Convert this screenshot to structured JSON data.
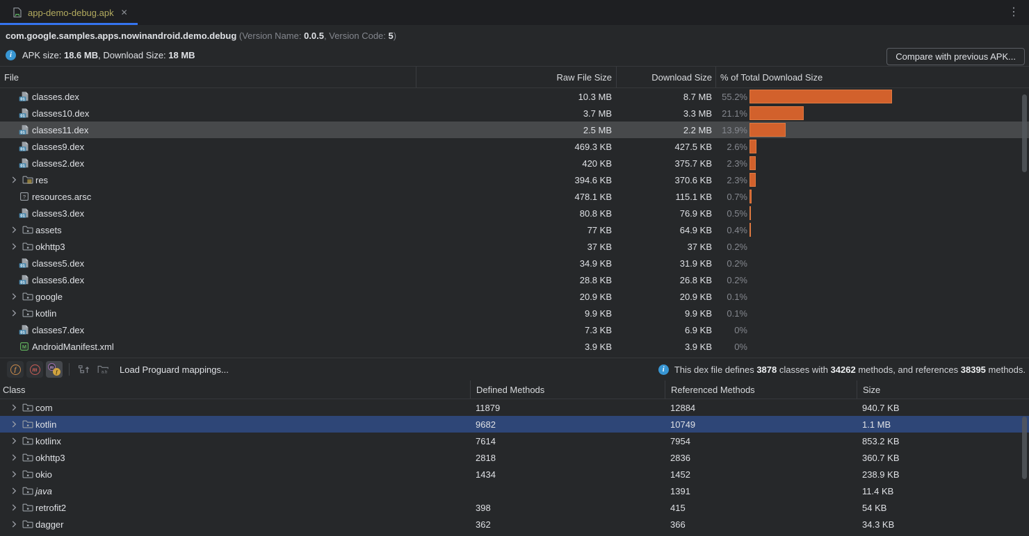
{
  "tab": {
    "title": "app-demo-debug.apk",
    "close_glyph": "✕",
    "menu_glyph": "⋮"
  },
  "header": {
    "package_name": "com.google.samples.apps.nowinandroid.demo.debug",
    "version_open": " (Version Name: ",
    "version_name": "0.0.5",
    "version_code_label": ", Version Code: ",
    "version_code": "5",
    "version_close": ")",
    "apk_size_label": "APK size: ",
    "apk_size": "18.6 MB",
    "download_size_label": ", Download Size: ",
    "download_size": "18 MB",
    "compare_button": "Compare with previous APK..."
  },
  "file_table": {
    "columns": [
      "File",
      "Raw File Size",
      "Download Size",
      "% of Total Download Size"
    ],
    "rows": [
      {
        "name": "classes.dex",
        "type": "dex",
        "expandable": false,
        "raw": "10.3 MB",
        "download": "8.7 MB",
        "pct": "55.2%",
        "pct_value": 55.2,
        "selected": false
      },
      {
        "name": "classes10.dex",
        "type": "dex",
        "expandable": false,
        "raw": "3.7 MB",
        "download": "3.3 MB",
        "pct": "21.1%",
        "pct_value": 21.1,
        "selected": false
      },
      {
        "name": "classes11.dex",
        "type": "dex",
        "expandable": false,
        "raw": "2.5 MB",
        "download": "2.2 MB",
        "pct": "13.9%",
        "pct_value": 13.9,
        "selected": true
      },
      {
        "name": "classes9.dex",
        "type": "dex",
        "expandable": false,
        "raw": "469.3 KB",
        "download": "427.5 KB",
        "pct": "2.6%",
        "pct_value": 2.6,
        "selected": false
      },
      {
        "name": "classes2.dex",
        "type": "dex",
        "expandable": false,
        "raw": "420 KB",
        "download": "375.7 KB",
        "pct": "2.3%",
        "pct_value": 2.3,
        "selected": false
      },
      {
        "name": "res",
        "type": "res",
        "expandable": true,
        "raw": "394.6 KB",
        "download": "370.6 KB",
        "pct": "2.3%",
        "pct_value": 2.3,
        "selected": false
      },
      {
        "name": "resources.arsc",
        "type": "arsc",
        "expandable": false,
        "raw": "478.1 KB",
        "download": "115.1 KB",
        "pct": "0.7%",
        "pct_value": 0.7,
        "selected": false
      },
      {
        "name": "classes3.dex",
        "type": "dex",
        "expandable": false,
        "raw": "80.8 KB",
        "download": "76.9 KB",
        "pct": "0.5%",
        "pct_value": 0.5,
        "selected": false
      },
      {
        "name": "assets",
        "type": "folder",
        "expandable": true,
        "raw": "77 KB",
        "download": "64.9 KB",
        "pct": "0.4%",
        "pct_value": 0.4,
        "selected": false
      },
      {
        "name": "okhttp3",
        "type": "folder",
        "expandable": true,
        "raw": "37 KB",
        "download": "37 KB",
        "pct": "0.2%",
        "pct_value": 0.2,
        "selected": false
      },
      {
        "name": "classes5.dex",
        "type": "dex",
        "expandable": false,
        "raw": "34.9 KB",
        "download": "31.9 KB",
        "pct": "0.2%",
        "pct_value": 0.2,
        "selected": false
      },
      {
        "name": "classes6.dex",
        "type": "dex",
        "expandable": false,
        "raw": "28.8 KB",
        "download": "26.8 KB",
        "pct": "0.2%",
        "pct_value": 0.2,
        "selected": false
      },
      {
        "name": "google",
        "type": "folder",
        "expandable": true,
        "raw": "20.9 KB",
        "download": "20.9 KB",
        "pct": "0.1%",
        "pct_value": 0.1,
        "selected": false
      },
      {
        "name": "kotlin",
        "type": "folder",
        "expandable": true,
        "raw": "9.9 KB",
        "download": "9.9 KB",
        "pct": "0.1%",
        "pct_value": 0.1,
        "selected": false
      },
      {
        "name": "classes7.dex",
        "type": "dex",
        "expandable": false,
        "raw": "7.3 KB",
        "download": "6.9 KB",
        "pct": "0%",
        "pct_value": 0,
        "selected": false
      },
      {
        "name": "AndroidManifest.xml",
        "type": "manifest",
        "expandable": false,
        "raw": "3.9 KB",
        "download": "3.9 KB",
        "pct": "0%",
        "pct_value": 0,
        "selected": false
      }
    ]
  },
  "toolbar": {
    "field_letter": "f",
    "method_letter": "m",
    "ref_method_letter": "m",
    "ref_field_letter": "f",
    "load_proguard_label": "Load Proguard mappings...",
    "info_prefix": "This dex file defines ",
    "classes_count": "3878",
    "info_mid1": " classes with ",
    "defined_methods_count": "34262",
    "info_mid2": " methods, and references ",
    "referenced_methods_count": "38395",
    "info_suffix": " methods."
  },
  "class_table": {
    "columns": [
      "Class",
      "Defined Methods",
      "Referenced Methods",
      "Size"
    ],
    "rows": [
      {
        "name": "com",
        "defined": "11879",
        "referenced": "12884",
        "size": "940.7 KB",
        "selected": false,
        "italic": false
      },
      {
        "name": "kotlin",
        "defined": "9682",
        "referenced": "10749",
        "size": "1.1 MB",
        "selected": true,
        "italic": false
      },
      {
        "name": "kotlinx",
        "defined": "7614",
        "referenced": "7954",
        "size": "853.2 KB",
        "selected": false,
        "italic": false
      },
      {
        "name": "okhttp3",
        "defined": "2818",
        "referenced": "2836",
        "size": "360.7 KB",
        "selected": false,
        "italic": false
      },
      {
        "name": "okio",
        "defined": "1434",
        "referenced": "1452",
        "size": "238.9 KB",
        "selected": false,
        "italic": false
      },
      {
        "name": "java",
        "defined": "",
        "referenced": "1391",
        "size": "11.4 KB",
        "selected": false,
        "italic": true
      },
      {
        "name": "retrofit2",
        "defined": "398",
        "referenced": "415",
        "size": "54 KB",
        "selected": false,
        "italic": false
      },
      {
        "name": "dagger",
        "defined": "362",
        "referenced": "366",
        "size": "34.3 KB",
        "selected": false,
        "italic": false
      }
    ]
  },
  "colors": {
    "accent_bar_orange": "#d2612c",
    "selection_blue": "#2e4677",
    "selection_gray": "#47494b",
    "tab_underline_blue": "#3574f0",
    "tab_title_yellow": "#b3ab5f",
    "info_icon_blue": "#3896d3",
    "manifest_green": "#60ae5c",
    "dex_badge_blue": "#4a88ad",
    "res_lines_yellow": "#d8b64a"
  }
}
